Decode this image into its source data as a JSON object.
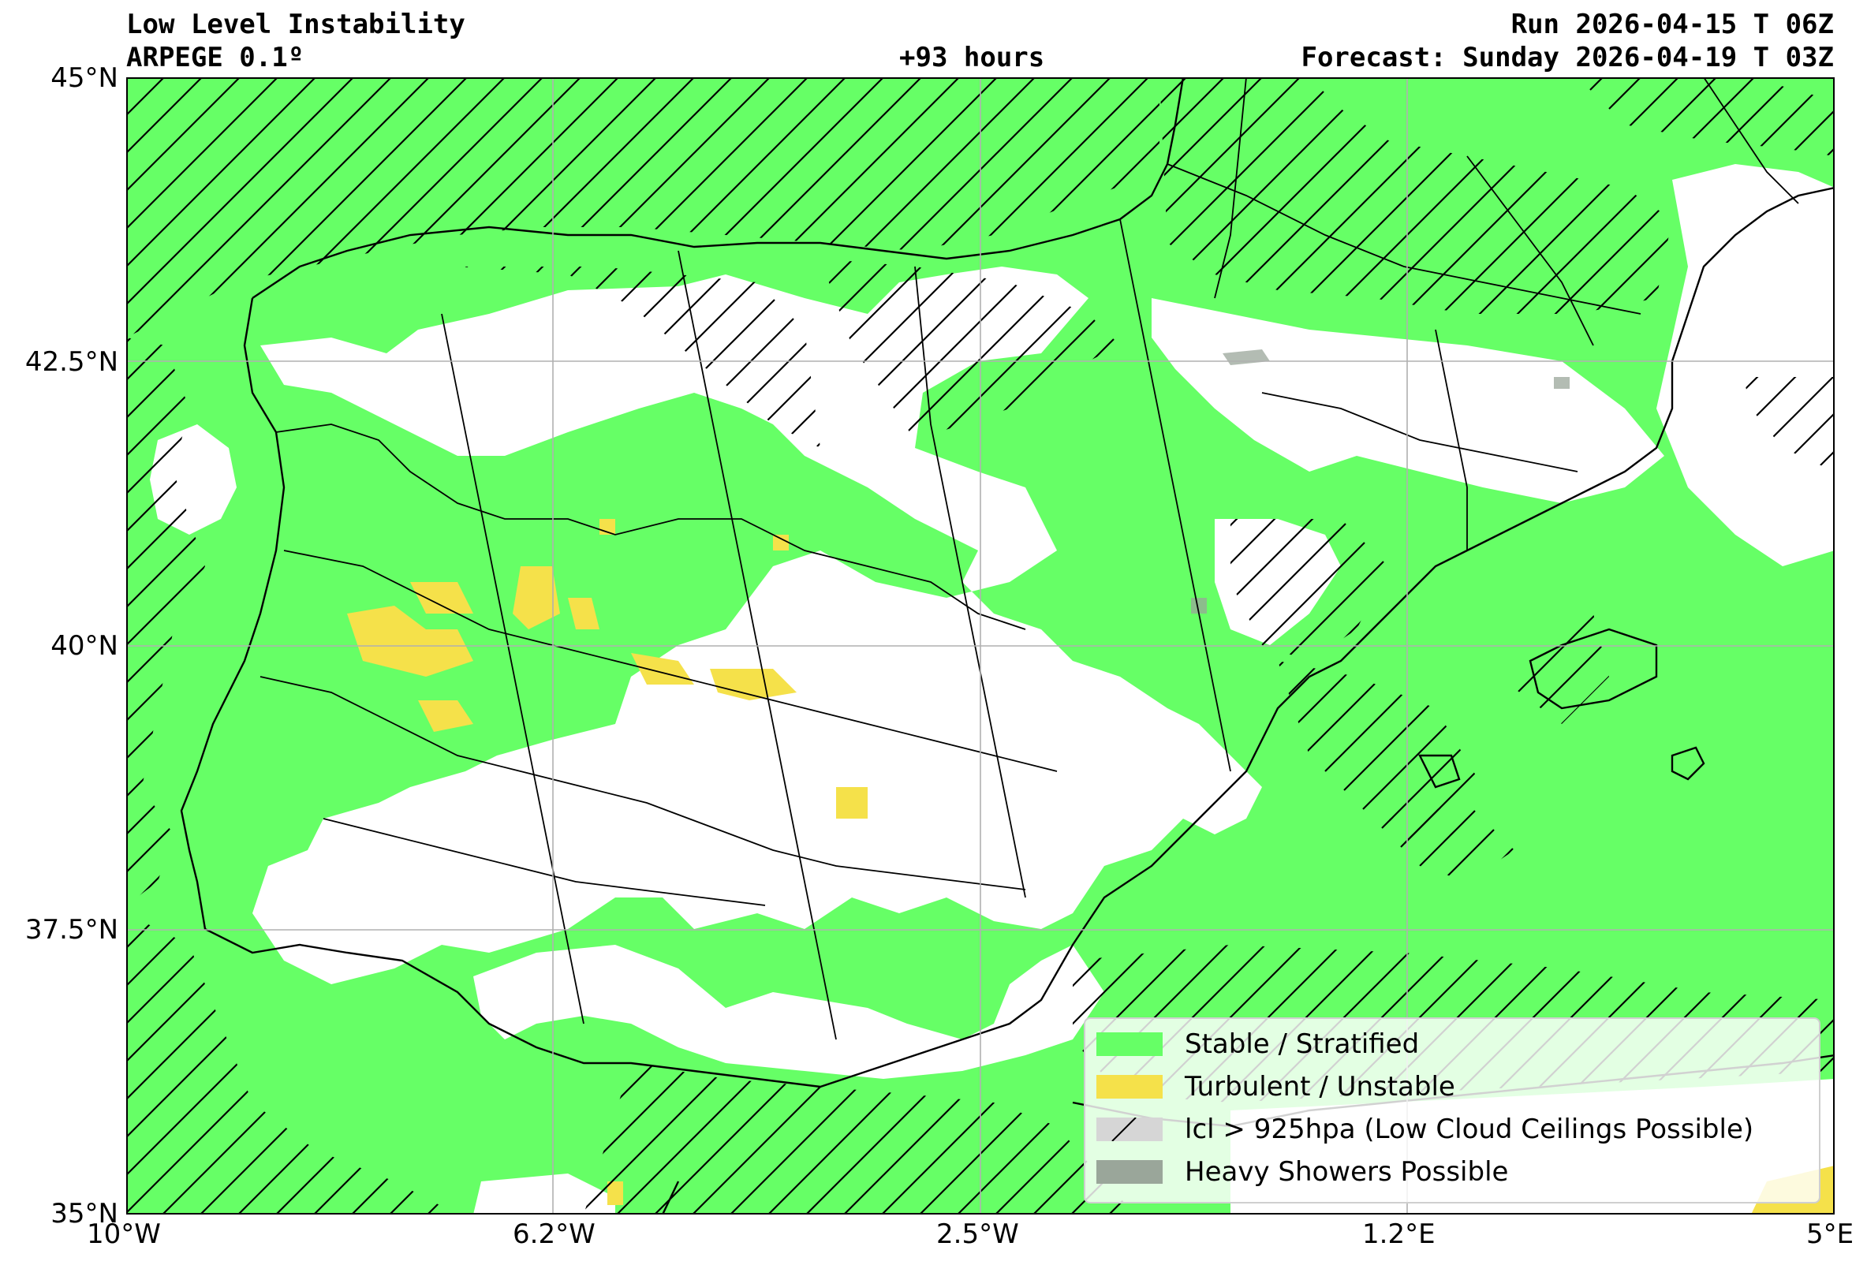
{
  "header": {
    "title": "Low Level Instability",
    "model": "ARPEGE 0.1º",
    "lead_time": "+93 hours",
    "run": "Run 2026-04-15 T 06Z",
    "forecast": "Forecast: Sunday 2026-04-19 T 03Z"
  },
  "axes": {
    "lat_ticks": [
      "45°N",
      "42.5°N",
      "40°N",
      "37.5°N",
      "35°N"
    ],
    "lon_ticks": [
      "10°W",
      "6.2°W",
      "2.5°W",
      "1.2°E",
      "5°E"
    ],
    "lat_range": [
      35,
      45
    ],
    "lon_range": [
      -10,
      5
    ],
    "grid": true
  },
  "legend": {
    "items": [
      {
        "label": "Stable / Stratified",
        "color": "#66ff66",
        "hatch": false
      },
      {
        "label": "Turbulent / Unstable",
        "color": "#f5e14a",
        "hatch": false
      },
      {
        "label": "lcl > 925hpa (Low Cloud Ceilings Possible)",
        "color": "#d6d6d6",
        "hatch": true
      },
      {
        "label": "Heavy Showers Possible",
        "color": "#9aa69a",
        "hatch": false
      }
    ]
  },
  "colors": {
    "stable": "#66ff66",
    "turbulent": "#f5e14a",
    "lcl": "#d6d6d6",
    "showers": "#9aa69a",
    "coast": "#000000",
    "grid": "#b0b0b0"
  }
}
